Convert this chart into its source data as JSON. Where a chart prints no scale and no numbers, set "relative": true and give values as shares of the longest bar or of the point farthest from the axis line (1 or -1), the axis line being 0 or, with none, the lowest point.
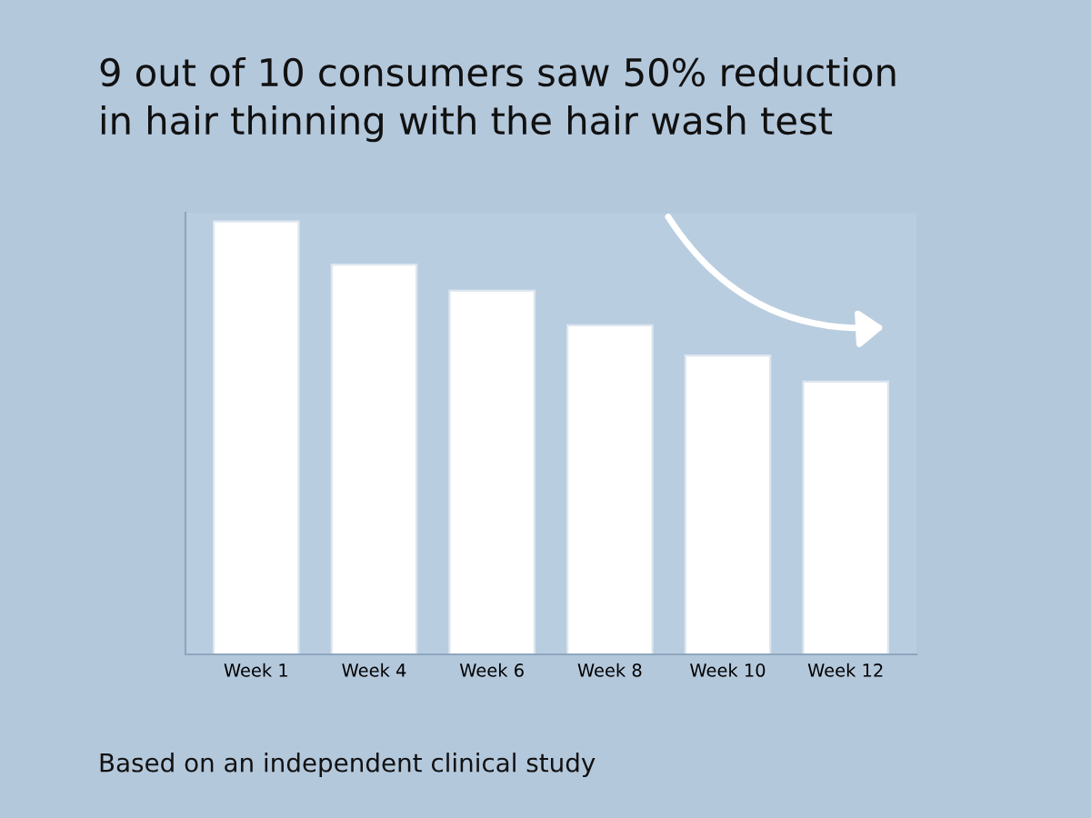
{
  "chart_data": {
    "type": "bar",
    "title": "9 out of 10 consumers saw 50% reduction\nin hair thinning with the hair wash test",
    "categories": [
      "Week 1",
      "Week 4",
      "Week 6",
      "Week 8",
      "Week 10",
      "Week 12"
    ],
    "values": [
      1,
      0.9,
      0.84,
      0.76,
      0.69,
      0.63
    ],
    "color": "#ffffff",
    "relative": true,
    "annotations": [
      "Based on an independent clinical study"
    ]
  }
}
